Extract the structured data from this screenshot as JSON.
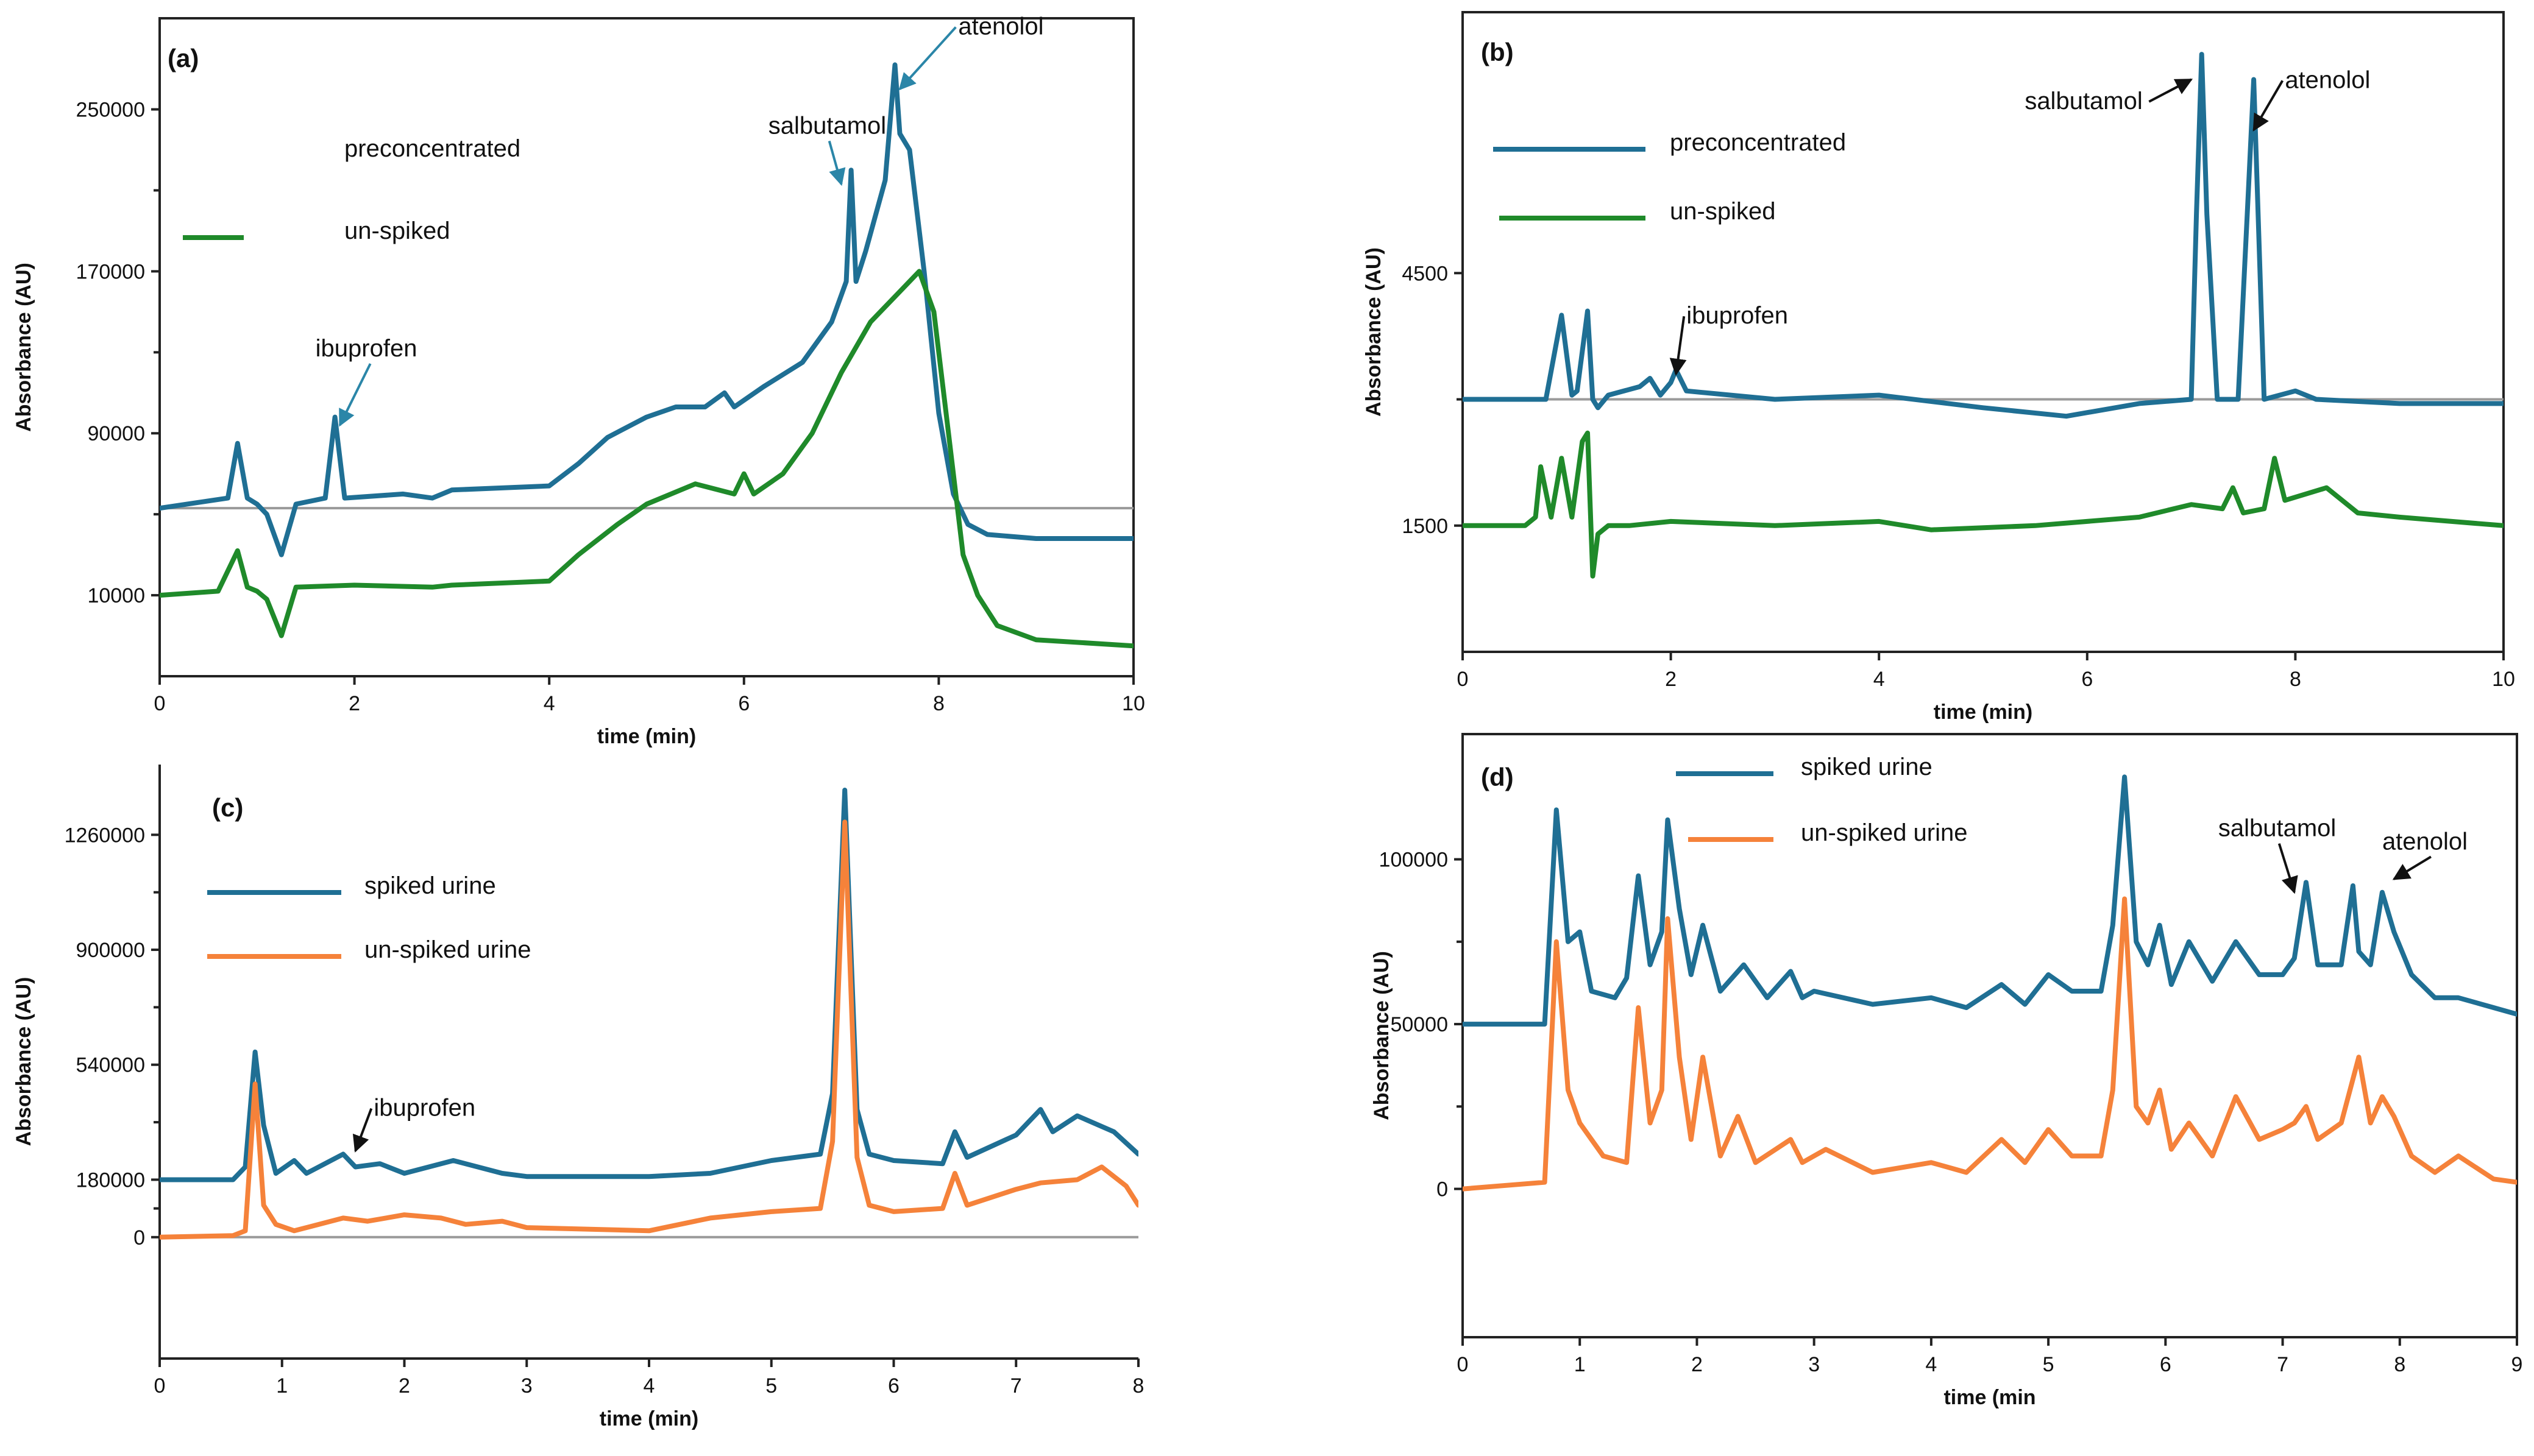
{
  "colors": {
    "blue": "#1f6f94",
    "green": "#1f8a2a",
    "orange": "#f5823a",
    "arrow_teal": "#2b86a8",
    "arrow_black": "#111111"
  },
  "chart_data": [
    {
      "id": "a",
      "panel_label": "(a)",
      "type": "line",
      "xlabel": "time (min)",
      "ylabel": "Absorbance (AU)",
      "xlim": [
        0,
        10
      ],
      "ylim": [
        -30000,
        295000
      ],
      "xticks": [
        0,
        2,
        4,
        6,
        8,
        10
      ],
      "xticklabels": [
        "0",
        "2",
        "4",
        "6",
        "8",
        "10"
      ],
      "yticks": [
        10000,
        90000,
        170000,
        250000
      ],
      "yticklabels": [
        "10000",
        "90000",
        "170000",
        "250000"
      ],
      "baseline": 53000,
      "legend": [
        {
          "label": "preconcentrated",
          "color": "#1f6f94"
        },
        {
          "label": "un-spiked",
          "color": "#1f8a2a"
        }
      ],
      "annotations": [
        {
          "text": "ibuprofen",
          "x": 1.6,
          "y": 128000,
          "arrow_to": [
            1.85,
            94000
          ],
          "arrow_color": "#2b86a8"
        },
        {
          "text": "salbutamol",
          "x": 6.25,
          "y": 238000,
          "arrow_to": [
            7.0,
            213000
          ],
          "arrow_color": "#2b86a8"
        },
        {
          "text": "atenolol",
          "x": 8.2,
          "y": 287000,
          "arrow_to": [
            7.6,
            260000
          ],
          "arrow_color": "#2b86a8"
        }
      ],
      "series": [
        {
          "name": "preconcentrated",
          "color": "#1f6f94",
          "x": [
            0,
            0.7,
            0.8,
            0.9,
            1.0,
            1.1,
            1.25,
            1.4,
            1.7,
            1.8,
            1.9,
            2.5,
            2.8,
            3.0,
            4.0,
            4.3,
            4.6,
            5.0,
            5.3,
            5.6,
            5.8,
            5.9,
            6.2,
            6.6,
            6.9,
            7.05,
            7.1,
            7.15,
            7.25,
            7.45,
            7.55,
            7.6,
            7.7,
            7.85,
            8.0,
            8.15,
            8.3,
            8.5,
            9.0,
            10
          ],
          "y": [
            53000,
            58000,
            85000,
            58000,
            55000,
            50000,
            30000,
            55000,
            58000,
            98000,
            58000,
            60000,
            58000,
            62000,
            64000,
            75000,
            88000,
            98000,
            103000,
            103000,
            110000,
            103000,
            113000,
            125000,
            145000,
            165000,
            220000,
            165000,
            180000,
            215000,
            272000,
            238000,
            230000,
            170000,
            100000,
            60000,
            45000,
            40000,
            38000,
            38000
          ]
        },
        {
          "name": "un-spiked",
          "color": "#1f8a2a",
          "x": [
            0,
            0.6,
            0.8,
            0.9,
            1.0,
            1.1,
            1.25,
            1.4,
            2.0,
            2.8,
            3.0,
            4.0,
            4.3,
            4.7,
            5.0,
            5.5,
            5.9,
            6.0,
            6.1,
            6.4,
            6.7,
            7.0,
            7.3,
            7.6,
            7.8,
            7.95,
            8.1,
            8.25,
            8.4,
            8.6,
            9.0,
            10
          ],
          "y": [
            10000,
            12000,
            32000,
            14000,
            12000,
            8000,
            -10000,
            14000,
            15000,
            14000,
            15000,
            17000,
            30000,
            45000,
            55000,
            65000,
            60000,
            70000,
            60000,
            70000,
            90000,
            120000,
            145000,
            160000,
            170000,
            150000,
            90000,
            30000,
            10000,
            -5000,
            -12000,
            -15000
          ]
        }
      ]
    },
    {
      "id": "b",
      "panel_label": "(b)",
      "type": "line",
      "xlabel": "time (min)",
      "ylabel": "Absorbance (AU)",
      "xlim": [
        0,
        10
      ],
      "ylim": [
        0,
        7600
      ],
      "xticks": [
        0,
        2,
        4,
        6,
        8,
        10
      ],
      "xticklabels": [
        "0",
        "2",
        "4",
        "6",
        "8",
        "10"
      ],
      "yticks": [
        1500,
        4500
      ],
      "yticklabels": [
        "1500",
        "4500"
      ],
      "baseline": 3000,
      "legend": [
        {
          "label": "preconcentrated",
          "color": "#1f6f94"
        },
        {
          "label": "un-spiked",
          "color": "#1f8a2a"
        }
      ],
      "annotations": [
        {
          "text": "ibuprofen",
          "x": 2.15,
          "y": 3900,
          "arrow_to": [
            2.05,
            3300
          ],
          "arrow_color": "#111111"
        },
        {
          "text": "salbutamol",
          "x": 5.4,
          "y": 6450,
          "arrow_to": [
            7.0,
            6800
          ],
          "arrow_color": "#111111"
        },
        {
          "text": "atenolol",
          "x": 7.9,
          "y": 6700,
          "arrow_to": [
            7.6,
            6200
          ],
          "arrow_color": "#111111"
        }
      ],
      "series": [
        {
          "name": "preconcentrated",
          "color": "#1f6f94",
          "x": [
            0,
            0.8,
            0.95,
            1.05,
            1.1,
            1.2,
            1.25,
            1.3,
            1.4,
            1.7,
            1.8,
            1.9,
            2.0,
            2.05,
            2.15,
            3.0,
            4.0,
            5.0,
            5.8,
            6.5,
            7.0,
            7.05,
            7.1,
            7.15,
            7.25,
            7.45,
            7.55,
            7.6,
            7.7,
            8.0,
            8.2,
            9.0,
            10
          ],
          "y": [
            3000,
            3000,
            4000,
            3050,
            3100,
            4050,
            3000,
            2900,
            3050,
            3150,
            3250,
            3050,
            3200,
            3350,
            3100,
            3000,
            3050,
            2900,
            2800,
            2950,
            3000,
            5200,
            7100,
            5200,
            3000,
            3000,
            5500,
            6800,
            3000,
            3100,
            3000,
            2950,
            2950
          ]
        },
        {
          "name": "un-spiked",
          "color": "#1f8a2a",
          "x": [
            0,
            0.6,
            0.7,
            0.75,
            0.85,
            0.95,
            1.05,
            1.15,
            1.2,
            1.25,
            1.3,
            1.4,
            1.6,
            2.0,
            3.0,
            4.0,
            4.5,
            5.5,
            6.5,
            7.0,
            7.3,
            7.4,
            7.5,
            7.7,
            7.8,
            7.9,
            8.3,
            8.6,
            9.0,
            10
          ],
          "y": [
            1500,
            1500,
            1600,
            2200,
            1600,
            2300,
            1600,
            2500,
            2600,
            900,
            1400,
            1500,
            1500,
            1550,
            1500,
            1550,
            1450,
            1500,
            1600,
            1750,
            1700,
            1950,
            1650,
            1700,
            2300,
            1800,
            1950,
            1650,
            1600,
            1500
          ]
        }
      ]
    },
    {
      "id": "c",
      "panel_label": "(c)",
      "type": "line",
      "xlabel": "time (min)",
      "ylabel": "Absorbance (AU)",
      "xlim": [
        0,
        8
      ],
      "ylim": [
        -380000,
        1480000
      ],
      "xticks": [
        0,
        1,
        2,
        3,
        4,
        5,
        6,
        7,
        8
      ],
      "xticklabels": [
        "0",
        "1",
        "2",
        "3",
        "4",
        "5",
        "6",
        "7",
        "8"
      ],
      "yticks": [
        0,
        180000,
        540000,
        900000,
        1260000
      ],
      "yticklabels": [
        "0",
        "180000",
        "540000",
        "900000",
        "1260000"
      ],
      "baseline": 0,
      "legend": [
        {
          "label": "spiked urine",
          "color": "#1f6f94"
        },
        {
          "label": "un-spiked urine",
          "color": "#f5823a"
        }
      ],
      "annotations": [
        {
          "text": "ibuprofen",
          "x": 1.75,
          "y": 380000,
          "arrow_to": [
            1.6,
            270000
          ],
          "arrow_color": "#111111"
        }
      ],
      "series": [
        {
          "name": "spiked urine",
          "color": "#1f6f94",
          "x": [
            0,
            0.6,
            0.7,
            0.78,
            0.85,
            0.95,
            1.1,
            1.2,
            1.5,
            1.6,
            1.8,
            2.0,
            2.4,
            2.8,
            3.0,
            4.0,
            4.5,
            5.0,
            5.4,
            5.5,
            5.6,
            5.7,
            5.8,
            6.0,
            6.4,
            6.5,
            6.6,
            7.0,
            7.2,
            7.3,
            7.5,
            7.8,
            8.0
          ],
          "y": [
            180000,
            180000,
            220000,
            580000,
            350000,
            200000,
            240000,
            200000,
            260000,
            220000,
            230000,
            200000,
            240000,
            200000,
            190000,
            190000,
            200000,
            240000,
            260000,
            450000,
            1400000,
            400000,
            260000,
            240000,
            230000,
            330000,
            250000,
            320000,
            400000,
            330000,
            380000,
            330000,
            260000
          ]
        },
        {
          "name": "un-spiked urine",
          "color": "#f5823a",
          "x": [
            0,
            0.6,
            0.7,
            0.78,
            0.85,
            0.95,
            1.1,
            1.5,
            1.7,
            2.0,
            2.3,
            2.5,
            2.8,
            3.0,
            4.0,
            4.5,
            5.0,
            5.4,
            5.5,
            5.6,
            5.7,
            5.8,
            6.0,
            6.4,
            6.5,
            6.6,
            7.0,
            7.2,
            7.5,
            7.7,
            7.9,
            8.0
          ],
          "y": [
            0,
            5000,
            20000,
            480000,
            100000,
            40000,
            20000,
            60000,
            50000,
            70000,
            60000,
            40000,
            50000,
            30000,
            20000,
            60000,
            80000,
            90000,
            300000,
            1300000,
            250000,
            100000,
            80000,
            90000,
            200000,
            100000,
            150000,
            170000,
            180000,
            220000,
            160000,
            100000
          ]
        }
      ]
    },
    {
      "id": "d",
      "panel_label": "(d)",
      "type": "line",
      "xlabel": "time (min",
      "ylabel": "Absorbance (AU)",
      "xlim": [
        0,
        9
      ],
      "ylim": [
        -45000,
        138000
      ],
      "xticks": [
        0,
        1,
        2,
        3,
        4,
        5,
        6,
        7,
        8,
        9
      ],
      "xticklabels": [
        "0",
        "1",
        "2",
        "3",
        "4",
        "5",
        "6",
        "7",
        "8",
        "9"
      ],
      "yticks": [
        0,
        50000,
        100000
      ],
      "yticklabels": [
        "0",
        "50000",
        "100000"
      ],
      "baseline": null,
      "legend": [
        {
          "label": "spiked urine",
          "color": "#1f6f94"
        },
        {
          "label": "un-spiked urine",
          "color": "#f5823a"
        }
      ],
      "annotations": [
        {
          "text": "salbutamol",
          "x": 6.45,
          "y": 107000,
          "arrow_to": [
            7.1,
            90000
          ],
          "arrow_color": "#111111"
        },
        {
          "text": "atenolol",
          "x": 7.85,
          "y": 103000,
          "arrow_to": [
            7.95,
            94000
          ],
          "arrow_color": "#111111"
        }
      ],
      "series": [
        {
          "name": "spiked urine",
          "color": "#1f6f94",
          "x": [
            0,
            0.7,
            0.8,
            0.9,
            1.0,
            1.1,
            1.3,
            1.4,
            1.5,
            1.6,
            1.7,
            1.75,
            1.85,
            1.95,
            2.05,
            2.2,
            2.4,
            2.6,
            2.8,
            2.9,
            3.0,
            3.5,
            4.0,
            4.3,
            4.6,
            4.8,
            5.0,
            5.2,
            5.45,
            5.55,
            5.65,
            5.75,
            5.85,
            5.95,
            6.05,
            6.2,
            6.4,
            6.6,
            6.8,
            7.0,
            7.1,
            7.2,
            7.3,
            7.5,
            7.6,
            7.65,
            7.75,
            7.85,
            7.95,
            8.1,
            8.3,
            8.5,
            8.8,
            9.0
          ],
          "y": [
            50000,
            50000,
            115000,
            75000,
            78000,
            60000,
            58000,
            64000,
            95000,
            68000,
            78000,
            112000,
            85000,
            65000,
            80000,
            60000,
            68000,
            58000,
            66000,
            58000,
            60000,
            56000,
            58000,
            55000,
            62000,
            56000,
            65000,
            60000,
            60000,
            80000,
            125000,
            75000,
            68000,
            80000,
            62000,
            75000,
            63000,
            75000,
            65000,
            65000,
            70000,
            93000,
            68000,
            68000,
            92000,
            72000,
            68000,
            90000,
            78000,
            65000,
            58000,
            58000,
            55000,
            53000
          ]
        },
        {
          "name": "un-spiked urine",
          "color": "#f5823a",
          "x": [
            0,
            0.7,
            0.8,
            0.9,
            1.0,
            1.2,
            1.4,
            1.5,
            1.6,
            1.7,
            1.75,
            1.85,
            1.95,
            2.05,
            2.2,
            2.35,
            2.5,
            2.8,
            2.9,
            3.1,
            3.5,
            4.0,
            4.3,
            4.6,
            4.8,
            5.0,
            5.2,
            5.45,
            5.55,
            5.65,
            5.75,
            5.85,
            5.95,
            6.05,
            6.2,
            6.4,
            6.6,
            6.8,
            7.0,
            7.1,
            7.2,
            7.3,
            7.5,
            7.65,
            7.75,
            7.85,
            7.95,
            8.1,
            8.3,
            8.5,
            8.8,
            9.0
          ],
          "y": [
            0,
            2000,
            75000,
            30000,
            20000,
            10000,
            8000,
            55000,
            20000,
            30000,
            82000,
            40000,
            15000,
            40000,
            10000,
            22000,
            8000,
            15000,
            8000,
            12000,
            5000,
            8000,
            5000,
            15000,
            8000,
            18000,
            10000,
            10000,
            30000,
            88000,
            25000,
            20000,
            30000,
            12000,
            20000,
            10000,
            28000,
            15000,
            18000,
            20000,
            25000,
            15000,
            20000,
            40000,
            20000,
            28000,
            22000,
            10000,
            5000,
            10000,
            3000,
            2000
          ]
        }
      ]
    }
  ]
}
